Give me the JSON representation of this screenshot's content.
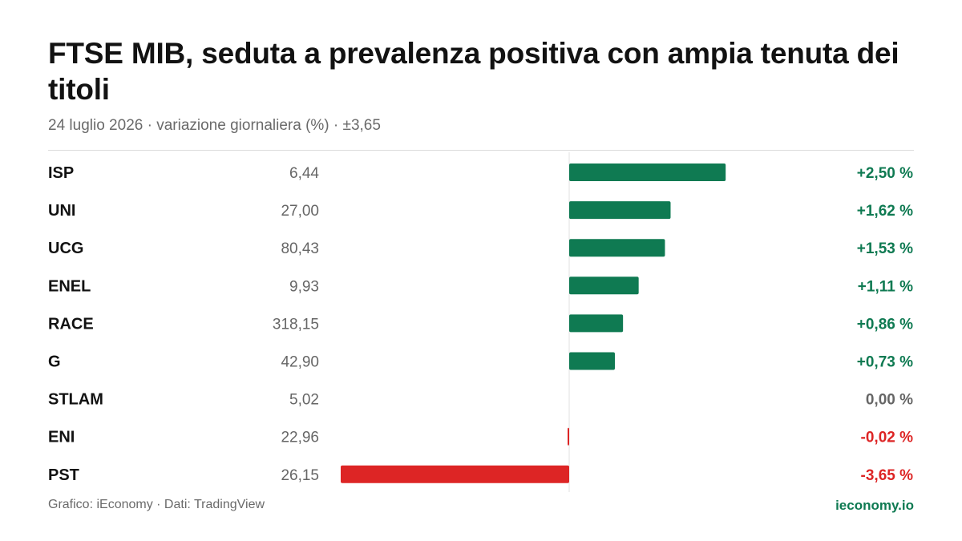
{
  "title": "FTSE MIB, seduta a prevalenza positiva con ampia tenuta dei titoli",
  "subtitle": "24 luglio 2026 · variazione giornaliera (%) · ±3,65",
  "footer": {
    "source": "Grafico: iEconomy · Dati: TradingView",
    "brand": "ieconomy.io"
  },
  "colors": {
    "positive": "#0f7a52",
    "negative": "#dd2525",
    "neutral": "#666666"
  },
  "chart_data": {
    "type": "bar",
    "orientation": "horizontal",
    "title": "FTSE MIB, seduta a prevalenza positiva con ampia tenuta dei titoli",
    "scale_max_abs": 3.65,
    "grid": false,
    "rows": [
      {
        "ticker": "ISP",
        "price": "6,44",
        "change": 2.5,
        "change_label": "+2,50 %"
      },
      {
        "ticker": "UNI",
        "price": "27,00",
        "change": 1.62,
        "change_label": "+1,62 %"
      },
      {
        "ticker": "UCG",
        "price": "80,43",
        "change": 1.53,
        "change_label": "+1,53 %"
      },
      {
        "ticker": "ENEL",
        "price": "9,93",
        "change": 1.11,
        "change_label": "+1,11 %"
      },
      {
        "ticker": "RACE",
        "price": "318,15",
        "change": 0.86,
        "change_label": "+0,86 %"
      },
      {
        "ticker": "G",
        "price": "42,90",
        "change": 0.73,
        "change_label": "+0,73 %"
      },
      {
        "ticker": "STLAM",
        "price": "5,02",
        "change": 0.0,
        "change_label": "0,00 %"
      },
      {
        "ticker": "ENI",
        "price": "22,96",
        "change": -0.02,
        "change_label": "-0,02 %"
      },
      {
        "ticker": "PST",
        "price": "26,15",
        "change": -3.65,
        "change_label": "-3,65 %"
      }
    ]
  }
}
